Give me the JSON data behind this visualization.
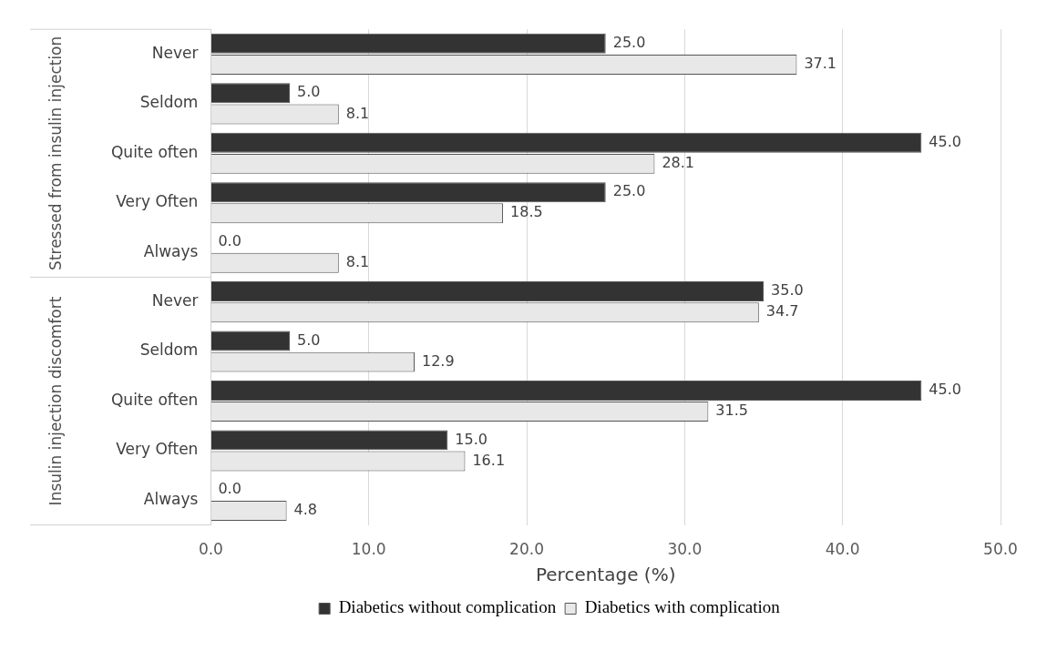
{
  "chart_data": {
    "type": "bar",
    "orientation": "horizontal",
    "xlabel": "Percentage (%)",
    "categories": [
      "Never",
      "Seldom",
      "Quite often",
      "Very Often",
      "Always",
      "Never",
      "Seldom",
      "Quite often",
      "Very Often",
      "Always"
    ],
    "annotations": [
      "Stressed from insulin injection",
      "Insulin injection discomfort"
    ],
    "series": [
      {
        "name": "Diabetics without complication",
        "color": "#333333",
        "values": [
          25,
          5,
          45,
          25,
          0,
          35,
          5,
          45,
          15,
          0
        ],
        "value_labels": [
          "25.0",
          "5.0",
          "45.0",
          "25.0",
          "0.0",
          "35.0",
          "5.0",
          "45.0",
          "15.0",
          "0.0"
        ]
      },
      {
        "name": "Diabetics with complication",
        "color": "#e8e8e8",
        "values": [
          37.1,
          8.1,
          28.1,
          18.5,
          8.1,
          34.7,
          12.9,
          31.5,
          16.1,
          4.8
        ],
        "value_labels": [
          "37.1",
          "8.1",
          "28.1",
          "18.5",
          "8.1",
          "34.7",
          "12.9",
          "31.5",
          "16.1",
          "4.8"
        ]
      }
    ],
    "xlim": [
      0,
      50
    ],
    "xticks": [
      {
        "value": 0,
        "label": "0.0"
      },
      {
        "value": 10,
        "label": "10.0"
      },
      {
        "value": 20,
        "label": "20.0"
      },
      {
        "value": 30,
        "label": "30.0"
      },
      {
        "value": 40,
        "label": "40.0"
      },
      {
        "value": 50,
        "label": "50.0"
      }
    ],
    "grid": "x",
    "legend": "bottom"
  }
}
